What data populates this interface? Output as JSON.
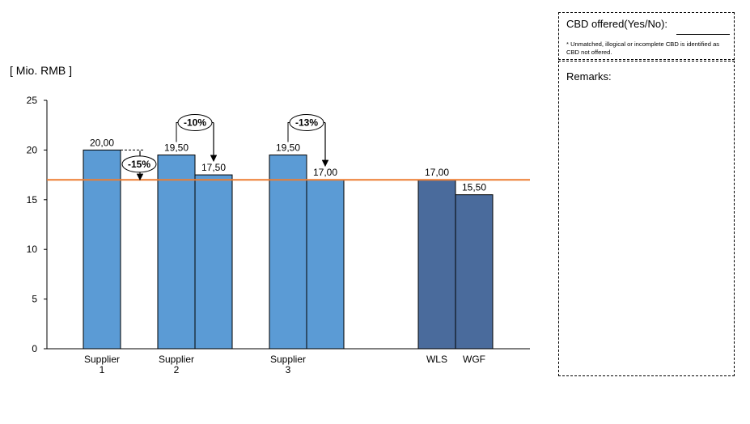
{
  "unit_label": "[ Mio. RMB ]",
  "cbd_panel": {
    "title": "CBD offered(Yes/No):",
    "note": "* Unmatched, illogical or incomplete CBD is identified as CBD not offered."
  },
  "remarks_panel": {
    "title": "Remarks:"
  },
  "colors": {
    "supplier_bar": "#5b9bd5",
    "reference_bar": "#4a6b9c",
    "threshold_line": "#ed7d31"
  },
  "chart_data": {
    "type": "bar",
    "title": "",
    "xlabel": "",
    "ylabel": "[ Mio. RMB ]",
    "ylim": [
      0,
      25
    ],
    "yticks": [
      0,
      5,
      10,
      15,
      20,
      25
    ],
    "grid": false,
    "bars": [
      {
        "group": 0,
        "value": 20.0,
        "label": "20,00",
        "kind": "supplier"
      },
      {
        "group": 1,
        "value": 19.5,
        "label": "19,50",
        "kind": "supplier"
      },
      {
        "group": 1,
        "value": 17.5,
        "label": "17,50",
        "kind": "supplier"
      },
      {
        "group": 2,
        "value": 19.5,
        "label": "19,50",
        "kind": "supplier"
      },
      {
        "group": 2,
        "value": 17.0,
        "label": "17,00",
        "kind": "supplier"
      },
      {
        "group": 3,
        "value": 17.0,
        "label": "17,00",
        "kind": "reference"
      },
      {
        "group": 4,
        "value": 15.5,
        "label": "15,50",
        "kind": "reference"
      }
    ],
    "categories": [
      {
        "lines": [
          "Supplier",
          "1"
        ]
      },
      {
        "lines": [
          "Supplier",
          "2"
        ]
      },
      {
        "lines": [
          "Supplier",
          "3"
        ]
      },
      {
        "lines": [
          "WLS"
        ]
      },
      {
        "lines": [
          "WGF"
        ]
      }
    ],
    "reference_line": {
      "value": 17.0
    },
    "annotations": [
      {
        "text": "-15%",
        "from_value": 20.0,
        "to_value": 17.0,
        "bar_index": 0,
        "style": "drop"
      },
      {
        "text": "-10%",
        "from_bar": 1,
        "to_bar": 2,
        "style": "bracket"
      },
      {
        "text": "-13%",
        "from_bar": 3,
        "to_bar": 4,
        "style": "bracket"
      }
    ]
  }
}
